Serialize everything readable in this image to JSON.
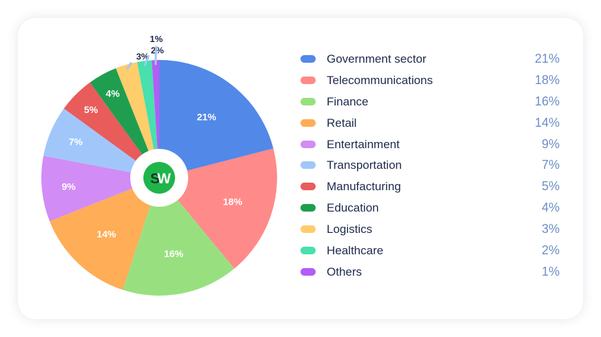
{
  "logo": {
    "text_s": "S",
    "text_w": "W",
    "color": "#1fb54a"
  },
  "chart_data": {
    "type": "pie",
    "title": "",
    "slices": [
      {
        "label": "Government sector",
        "value": 21,
        "display": "21%",
        "color": "#5288e8"
      },
      {
        "label": "Telecommunications",
        "value": 18,
        "display": "18%",
        "color": "#ff8a8a"
      },
      {
        "label": "Finance",
        "value": 16,
        "display": "16%",
        "color": "#98e07f"
      },
      {
        "label": "Retail",
        "value": 14,
        "display": "14%",
        "color": "#ffad57"
      },
      {
        "label": "Entertainment",
        "value": 9,
        "display": "9%",
        "color": "#d28cf5"
      },
      {
        "label": "Transportation",
        "value": 7,
        "display": "7%",
        "color": "#a1c7fa"
      },
      {
        "label": "Manufacturing",
        "value": 5,
        "display": "5%",
        "color": "#e85c5c"
      },
      {
        "label": "Education",
        "value": 4,
        "display": "4%",
        "color": "#1f9e50"
      },
      {
        "label": "Logistics",
        "value": 3,
        "display": "3%",
        "color": "#ffcd6b"
      },
      {
        "label": "Healthcare",
        "value": 2,
        "display": "2%",
        "color": "#47e0ae"
      },
      {
        "label": "Others",
        "value": 1,
        "display": "1%",
        "color": "#b45cf5"
      }
    ],
    "legend_position": "right",
    "label_color": "#ffffff",
    "outside_label_color": "#1d2a4a",
    "leader_line_color": "#a1c7fa"
  }
}
